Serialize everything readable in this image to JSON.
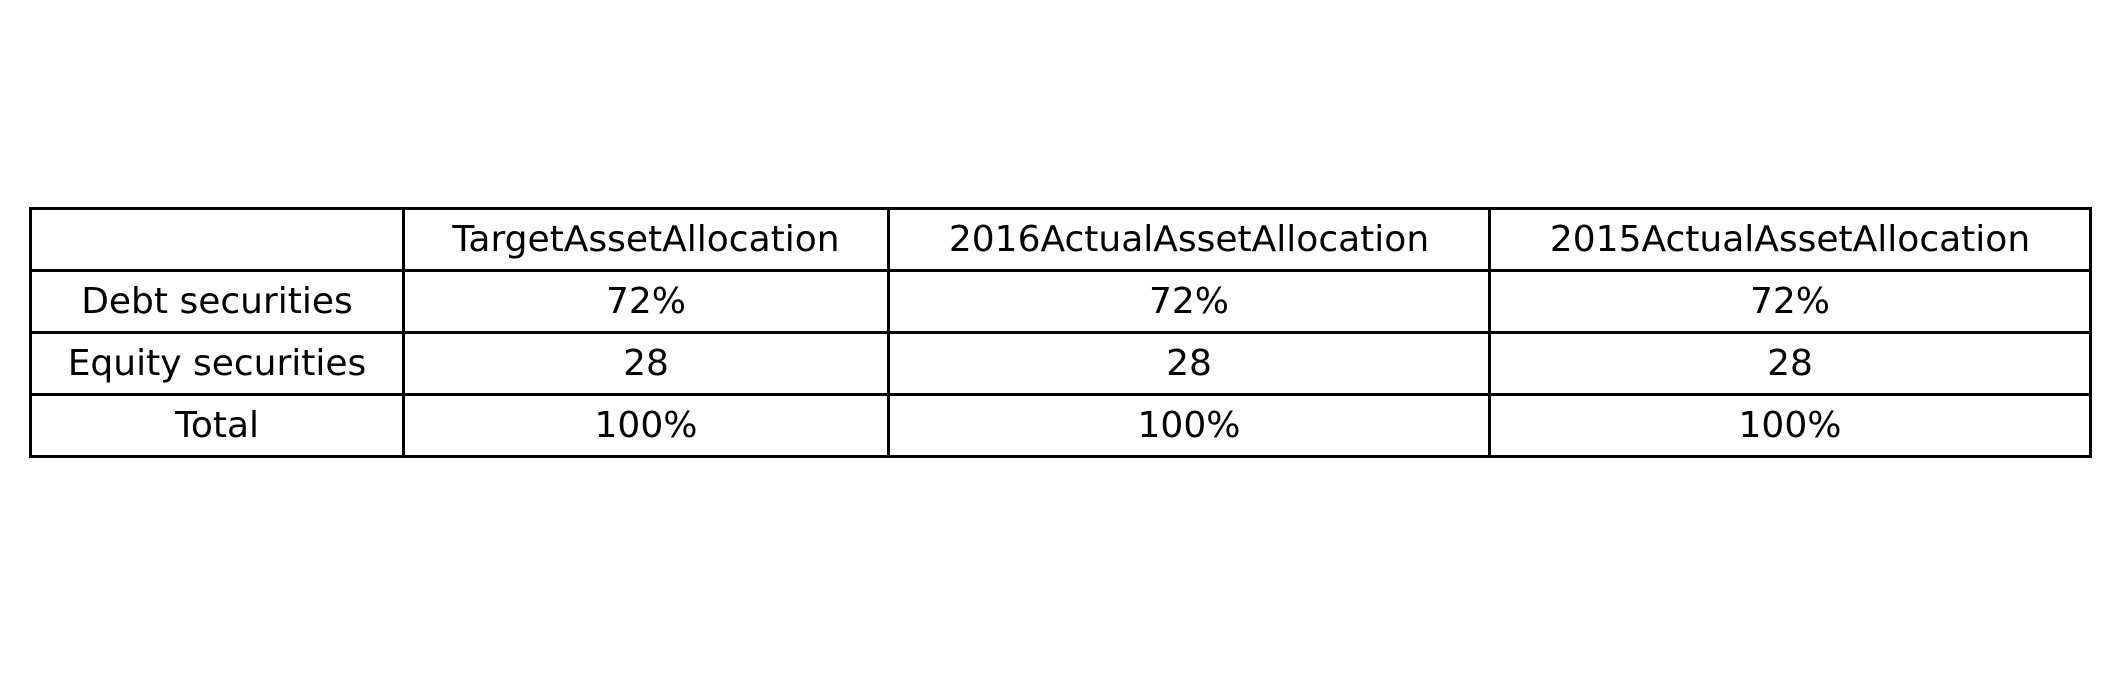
{
  "chart_data": {
    "type": "table",
    "columns": [
      "",
      "TargetAssetAllocation",
      "2016ActualAssetAllocation",
      "2015ActualAssetAllocation"
    ],
    "rows": [
      [
        "Debt securities",
        "72%",
        "72%",
        "72%"
      ],
      [
        "Equity securities",
        "28",
        "28",
        "28"
      ],
      [
        "Total",
        "100%",
        "100%",
        "100%"
      ]
    ]
  }
}
